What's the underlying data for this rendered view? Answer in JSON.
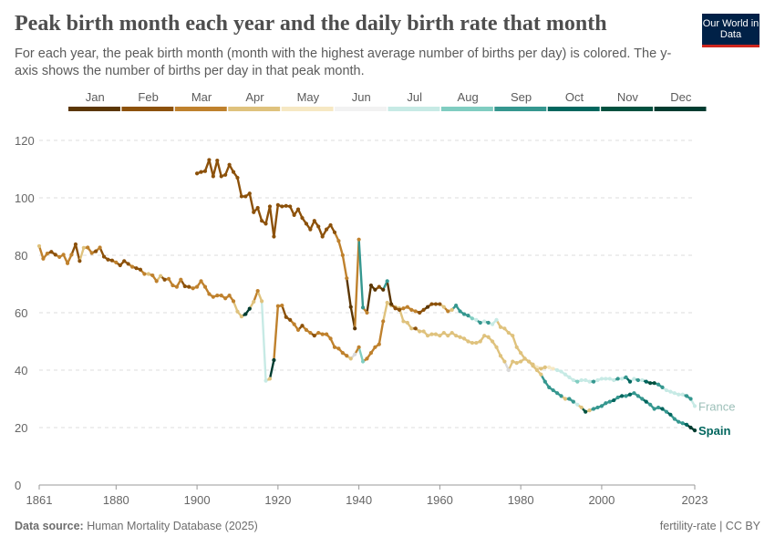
{
  "header": {
    "title": "Peak birth month each year and the daily birth rate that month",
    "subtitle": "For each year, the peak birth month (month with the highest average number of births per day) is colored. The y-axis shows the number of births per day in that peak month.",
    "logo": "Our World in Data"
  },
  "footer": {
    "source_label": "Data source:",
    "source": "Human Mortality Database (2025)",
    "right": "fertility-rate | CC BY"
  },
  "legend": {
    "months": [
      "Jan",
      "Feb",
      "Mar",
      "Apr",
      "May",
      "Jun",
      "Jul",
      "Aug",
      "Sep",
      "Oct",
      "Nov",
      "Dec"
    ],
    "colors": [
      "#5b3604",
      "#8c510a",
      "#bf812d",
      "#dfc27d",
      "#f6e8c3",
      "#f2f2f2",
      "#c7eae5",
      "#80cdc1",
      "#35978f",
      "#01665e",
      "#01513f",
      "#003c30"
    ]
  },
  "chart_data": {
    "type": "line",
    "title": "Peak birth month each year and the daily birth rate that month",
    "xlabel": "",
    "ylabel": "",
    "xlim": [
      1861,
      2023
    ],
    "ylim": [
      0,
      120
    ],
    "x_ticks": [
      "1861",
      "1880",
      "1900",
      "1920",
      "1940",
      "1960",
      "1980",
      "2000",
      "2023"
    ],
    "y_ticks": [
      "0",
      "20",
      "40",
      "60",
      "80",
      "100",
      "120"
    ],
    "grid": "horizontal dashed",
    "series": [
      {
        "name": "France",
        "start_year": 1861,
        "label_color": "#9cbfb8",
        "values": [
          83.2,
          78.8,
          80.6,
          81.2,
          80.2,
          79.4,
          80.2,
          77.2,
          80.2,
          83.8,
          78,
          82.6,
          82.7,
          80.8,
          81.4,
          82.7,
          79.5,
          78.5,
          78.2,
          77.5,
          76.5,
          78,
          77,
          76,
          75.5,
          75,
          73.5,
          73.5,
          73,
          71,
          72.8,
          71.5,
          71.8,
          69.5,
          69,
          71.5,
          69.2,
          69,
          68.5,
          69,
          71,
          69,
          66.5,
          65.5,
          66,
          66,
          65,
          66,
          64,
          60.4,
          58.7,
          59.5,
          61.4,
          63.8,
          67.6,
          64,
          36.3,
          37,
          43.5,
          62.3,
          62.5,
          58.5,
          57.5,
          56,
          54,
          55.5,
          54,
          53,
          52,
          53,
          52.5,
          52.5,
          51,
          48,
          47.5,
          46,
          45,
          44,
          45.5,
          48,
          43,
          44,
          46,
          48,
          49,
          57,
          63.5,
          62.5,
          62,
          61.5,
          57,
          56.5,
          54.5,
          54.5,
          53.5,
          53.5,
          52,
          52.5,
          52.5,
          52,
          53,
          52,
          53,
          52,
          51.5,
          51,
          50,
          49.5,
          49.5,
          50,
          52,
          51.5,
          50,
          48,
          45,
          43,
          40,
          43,
          42.5,
          43,
          44,
          43,
          42,
          41,
          40.5,
          41,
          41,
          40.5,
          40,
          39.5,
          38.5,
          37.5,
          36.5,
          36,
          36.5,
          36.5,
          36,
          36,
          36.5,
          37,
          37,
          37,
          36.5,
          37,
          37,
          37.5,
          36,
          37,
          36.5,
          36.5,
          36,
          35.5,
          35.5,
          35,
          34,
          33,
          32.5,
          32,
          31.5,
          31.5,
          31,
          30,
          27.5
        ],
        "peak_month": [
          4,
          3,
          3,
          2,
          2,
          3,
          3,
          3,
          3,
          2,
          2,
          4,
          3,
          3,
          2,
          3,
          2,
          2,
          2,
          3,
          2,
          2,
          2,
          3,
          2,
          2,
          3,
          4,
          3,
          3,
          4,
          2,
          3,
          3,
          3,
          3,
          2,
          2,
          3,
          3,
          3,
          3,
          3,
          3,
          3,
          3,
          3,
          3,
          3,
          4,
          4,
          12,
          12,
          4,
          3,
          4,
          7,
          4,
          12,
          3,
          3,
          2,
          2,
          3,
          3,
          2,
          3,
          3,
          2,
          3,
          3,
          3,
          3,
          3,
          3,
          3,
          3,
          4,
          6,
          3,
          8,
          3,
          3,
          3,
          3,
          3,
          4,
          4,
          4,
          4,
          4,
          4,
          4,
          2,
          4,
          4,
          4,
          4,
          4,
          4,
          4,
          4,
          4,
          4,
          4,
          4,
          4,
          4,
          4,
          4,
          4,
          4,
          4,
          4,
          4,
          4,
          6,
          4,
          4,
          4,
          4,
          4,
          4,
          5,
          4,
          4,
          5,
          5,
          7,
          7,
          7,
          7,
          7,
          8,
          7,
          7,
          7,
          9,
          7,
          7,
          7,
          7,
          7,
          9,
          7,
          9,
          10,
          7,
          9,
          7,
          10,
          11,
          11,
          9,
          9,
          7,
          7,
          7,
          7,
          7,
          9,
          9,
          7
        ]
      },
      {
        "name": "Spain",
        "start_year": 1900,
        "label_color": "#01665e",
        "values": [
          108.5,
          109,
          109.3,
          113.2,
          107.5,
          113,
          107.5,
          108,
          111.5,
          109,
          107,
          100.5,
          100.5,
          101.5,
          95,
          96.5,
          92,
          91,
          97,
          86.5,
          97.5,
          97,
          97.2,
          97,
          94,
          96,
          93,
          91,
          89,
          92,
          90,
          86.5,
          89,
          90.5,
          88,
          85,
          80,
          72,
          62,
          54.5,
          85.5,
          61.8,
          60,
          69.5,
          68,
          69,
          68,
          71,
          63,
          61.5,
          61,
          61.5,
          62,
          61,
          60.5,
          60,
          61,
          62,
          63,
          63,
          63,
          62,
          60.5,
          61,
          62.5,
          60.5,
          59.5,
          59,
          58,
          57.5,
          56.5,
          57,
          56.5,
          56,
          57.5,
          55,
          54.5,
          53,
          52,
          48,
          46,
          44,
          43,
          41.5,
          40,
          38.5,
          36,
          34,
          33,
          32,
          31,
          30,
          30,
          29,
          28,
          27,
          25.5,
          26,
          26.5,
          27,
          27.5,
          28.5,
          29,
          29.5,
          30.5,
          31,
          31,
          31.5,
          32,
          31,
          30,
          29,
          28,
          26.5,
          27,
          26.5,
          25.5,
          24.5,
          23,
          22,
          21.5,
          21,
          20,
          19
        ],
        "peak_month": [
          2,
          2,
          2,
          2,
          2,
          2,
          2,
          2,
          2,
          2,
          2,
          2,
          2,
          2,
          2,
          2,
          2,
          2,
          2,
          2,
          2,
          2,
          2,
          2,
          2,
          2,
          2,
          2,
          2,
          2,
          2,
          2,
          2,
          2,
          2,
          3,
          3,
          3,
          1,
          1,
          3,
          9,
          3,
          1,
          1,
          2,
          1,
          9,
          1,
          2,
          2,
          3,
          3,
          3,
          3,
          2,
          2,
          1,
          2,
          2,
          2,
          4,
          3,
          4,
          9,
          9,
          9,
          9,
          8,
          7,
          9,
          7,
          9,
          7,
          7,
          4,
          4,
          4,
          4,
          4,
          4,
          4,
          4,
          4,
          4,
          4,
          9,
          9,
          9,
          9,
          9,
          4,
          9,
          9,
          7,
          4,
          11,
          4,
          9,
          9,
          9,
          9,
          9,
          10,
          9,
          10,
          9,
          10,
          9,
          9,
          9,
          10,
          9,
          9,
          9,
          10,
          9,
          10,
          9,
          9,
          9,
          10,
          12,
          12
        ]
      }
    ]
  }
}
